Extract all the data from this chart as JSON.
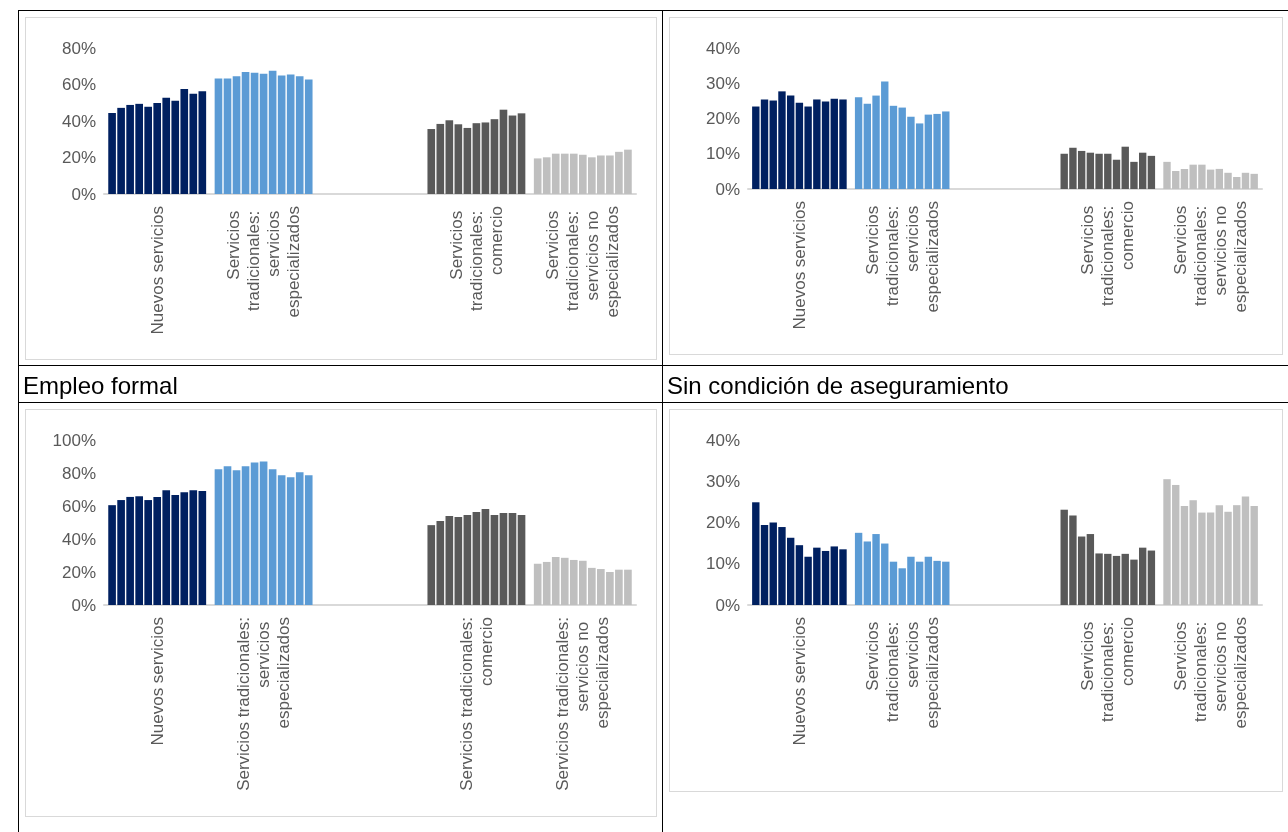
{
  "chart_data": [
    {
      "type": "bar",
      "categories": [
        "Nuevos servicios",
        "Servicios tradicionales: servicios especializados",
        null,
        "Servicios tradicionales: comercio",
        "Servicios tradicionales: servicios no especializados"
      ],
      "ylim": [
        0,
        80
      ],
      "yticks": [
        {
          "value": 0,
          "label": "0%"
        },
        {
          "value": 20,
          "label": "20%"
        },
        {
          "value": 40,
          "label": "40%"
        },
        {
          "value": 60,
          "label": "60%"
        },
        {
          "value": 80,
          "label": "80%"
        }
      ],
      "grid": false,
      "series": [
        {
          "values": [
            44.4,
            63.3,
            null,
            35.6,
            19.5
          ],
          "colors": [
            "#002060",
            "#5b9bd5",
            null,
            "#595959",
            "#bfbfbf"
          ]
        },
        {
          "values": [
            47.2,
            63.3,
            null,
            38.4,
            20.1
          ],
          "colors": [
            "#002060",
            "#5b9bd5",
            null,
            "#595959",
            "#bfbfbf"
          ]
        },
        {
          "values": [
            48.8,
            64.5,
            null,
            40.4,
            22.1
          ],
          "colors": [
            "#002060",
            "#5b9bd5",
            null,
            "#595959",
            "#bfbfbf"
          ]
        },
        {
          "values": [
            49.4,
            66.9,
            null,
            38.2,
            22.1
          ],
          "colors": [
            "#002060",
            "#5b9bd5",
            null,
            "#595959",
            "#bfbfbf"
          ]
        },
        {
          "values": [
            47.8,
            66.5,
            null,
            36.2,
            22.1
          ],
          "colors": [
            "#002060",
            "#5b9bd5",
            null,
            "#595959",
            "#bfbfbf"
          ]
        },
        {
          "values": [
            49.8,
            65.9,
            null,
            38.8,
            21.5
          ],
          "colors": [
            "#002060",
            "#5b9bd5",
            null,
            "#595959",
            "#bfbfbf"
          ]
        },
        {
          "values": [
            52.7,
            67.5,
            null,
            39.2,
            20.1
          ],
          "colors": [
            "#002060",
            "#5b9bd5",
            null,
            "#595959",
            "#bfbfbf"
          ]
        },
        {
          "values": [
            51.1,
            64.9,
            null,
            41.0,
            21.1
          ],
          "colors": [
            "#002060",
            "#5b9bd5",
            null,
            "#595959",
            "#bfbfbf"
          ]
        },
        {
          "values": [
            57.5,
            65.5,
            null,
            46.2,
            21.1
          ],
          "colors": [
            "#002060",
            "#5b9bd5",
            null,
            "#595959",
            "#bfbfbf"
          ]
        },
        {
          "values": [
            54.9,
            64.5,
            null,
            43.0,
            23.1
          ],
          "colors": [
            "#002060",
            "#5b9bd5",
            null,
            "#595959",
            "#bfbfbf"
          ]
        },
        {
          "values": [
            56.3,
            62.7,
            null,
            44.2,
            24.3
          ],
          "colors": [
            "#002060",
            "#5b9bd5",
            null,
            "#595959",
            "#bfbfbf"
          ]
        }
      ]
    },
    {
      "type": "bar",
      "categories": [
        "Nuevos servicios",
        "Servicios tradicionales: servicios especializados",
        null,
        "Servicios tradicionales: comercio",
        "Servicios tradicionales: servicios no especializados"
      ],
      "ylim": [
        0,
        40
      ],
      "yticks": [
        {
          "value": 0,
          "label": "0%"
        },
        {
          "value": 10,
          "label": "10%"
        },
        {
          "value": 20,
          "label": "20%"
        },
        {
          "value": 30,
          "label": "30%"
        },
        {
          "value": 40,
          "label": "40%"
        }
      ],
      "grid": false,
      "series": [
        {
          "values": [
            23.4,
            26.0,
            null,
            10.0,
            7.7
          ],
          "colors": [
            "#002060",
            "#5b9bd5",
            null,
            "#595959",
            "#bfbfbf"
          ]
        },
        {
          "values": [
            25.4,
            24.2,
            null,
            11.7,
            5.1
          ],
          "colors": [
            "#002060",
            "#5b9bd5",
            null,
            "#595959",
            "#bfbfbf"
          ]
        },
        {
          "values": [
            25.1,
            26.5,
            null,
            10.8,
            5.7
          ],
          "colors": [
            "#002060",
            "#5b9bd5",
            null,
            "#595959",
            "#bfbfbf"
          ]
        },
        {
          "values": [
            27.7,
            30.5,
            null,
            10.3,
            6.9
          ],
          "colors": [
            "#002060",
            "#5b9bd5",
            null,
            "#595959",
            "#bfbfbf"
          ]
        },
        {
          "values": [
            26.5,
            23.6,
            null,
            10.0,
            6.9
          ],
          "colors": [
            "#002060",
            "#5b9bd5",
            null,
            "#595959",
            "#bfbfbf"
          ]
        },
        {
          "values": [
            24.5,
            23.1,
            null,
            10.0,
            5.5
          ],
          "colors": [
            "#002060",
            "#5b9bd5",
            null,
            "#595959",
            "#bfbfbf"
          ]
        },
        {
          "values": [
            23.4,
            20.5,
            null,
            8.3,
            5.7
          ],
          "colors": [
            "#002060",
            "#5b9bd5",
            null,
            "#595959",
            "#bfbfbf"
          ]
        },
        {
          "values": [
            25.4,
            18.6,
            null,
            12.0,
            4.6
          ],
          "colors": [
            "#002060",
            "#5b9bd5",
            null,
            "#595959",
            "#bfbfbf"
          ]
        },
        {
          "values": [
            24.8,
            21.1,
            null,
            7.7,
            3.4
          ],
          "colors": [
            "#002060",
            "#5b9bd5",
            null,
            "#595959",
            "#bfbfbf"
          ]
        },
        {
          "values": [
            25.6,
            21.3,
            null,
            10.3,
            4.6
          ],
          "colors": [
            "#002060",
            "#5b9bd5",
            null,
            "#595959",
            "#bfbfbf"
          ]
        },
        {
          "values": [
            25.4,
            22.0,
            null,
            9.4,
            4.3
          ],
          "colors": [
            "#002060",
            "#5b9bd5",
            null,
            "#595959",
            "#bfbfbf"
          ]
        }
      ]
    },
    {
      "type": "bar",
      "title": "Empleo formal",
      "categories": [
        "Nuevos servicios",
        "Servicios tradicionales: servicios especializados",
        null,
        "Servicios tradicionales: comercio",
        "Servicios tradicionales: servicios no especializados"
      ],
      "ylim": [
        0,
        100
      ],
      "yticks": [
        {
          "value": 0,
          "label": "0%"
        },
        {
          "value": 20,
          "label": "20%"
        },
        {
          "value": 40,
          "label": "40%"
        },
        {
          "value": 60,
          "label": "60%"
        },
        {
          "value": 80,
          "label": "80%"
        },
        {
          "value": 100,
          "label": "100%"
        }
      ],
      "grid": false,
      "series": [
        {
          "values": [
            60.5,
            82.3,
            null,
            48.4,
            25.0
          ],
          "colors": [
            "#002060",
            "#5b9bd5",
            null,
            "#595959",
            "#bfbfbf"
          ]
        },
        {
          "values": [
            63.6,
            84.1,
            null,
            50.9,
            26.1
          ],
          "colors": [
            "#002060",
            "#5b9bd5",
            null,
            "#595959",
            "#bfbfbf"
          ]
        },
        {
          "values": [
            65.5,
            81.6,
            null,
            53.9,
            29.1
          ],
          "colors": [
            "#002060",
            "#5b9bd5",
            null,
            "#595959",
            "#bfbfbf"
          ]
        },
        {
          "values": [
            65.9,
            84.1,
            null,
            53.4,
            28.6
          ],
          "colors": [
            "#002060",
            "#5b9bd5",
            null,
            "#595959",
            "#bfbfbf"
          ]
        },
        {
          "values": [
            63.6,
            86.4,
            null,
            54.5,
            27.3
          ],
          "colors": [
            "#002060",
            "#5b9bd5",
            null,
            "#595959",
            "#bfbfbf"
          ]
        },
        {
          "values": [
            65.5,
            87.0,
            null,
            56.4,
            26.8
          ],
          "colors": [
            "#002060",
            "#5b9bd5",
            null,
            "#595959",
            "#bfbfbf"
          ]
        },
        {
          "values": [
            69.5,
            82.3,
            null,
            58.2,
            22.5
          ],
          "colors": [
            "#002060",
            "#5b9bd5",
            null,
            "#595959",
            "#bfbfbf"
          ]
        },
        {
          "values": [
            66.6,
            78.6,
            null,
            54.5,
            21.8
          ],
          "colors": [
            "#002060",
            "#5b9bd5",
            null,
            "#595959",
            "#bfbfbf"
          ]
        },
        {
          "values": [
            68.4,
            77.5,
            null,
            55.7,
            20.0
          ],
          "colors": [
            "#002060",
            "#5b9bd5",
            null,
            "#595959",
            "#bfbfbf"
          ]
        },
        {
          "values": [
            69.5,
            80.5,
            null,
            55.7,
            21.4
          ],
          "colors": [
            "#002060",
            "#5b9bd5",
            null,
            "#595959",
            "#bfbfbf"
          ]
        },
        {
          "values": [
            69.1,
            78.6,
            null,
            54.5,
            21.4
          ],
          "colors": [
            "#002060",
            "#5b9bd5",
            null,
            "#595959",
            "#bfbfbf"
          ]
        }
      ]
    },
    {
      "type": "bar",
      "title": "Sin condición de aseguramiento",
      "categories": [
        "Nuevos servicios",
        "Servicios tradicionales: servicios especializados",
        null,
        "Servicios tradicionales: comercio",
        "Servicios tradicionales: servicios no especializados"
      ],
      "ylim": [
        0,
        40
      ],
      "yticks": [
        {
          "value": 0,
          "label": "0%"
        },
        {
          "value": 10,
          "label": "10%"
        },
        {
          "value": 20,
          "label": "20%"
        },
        {
          "value": 30,
          "label": "30%"
        },
        {
          "value": 40,
          "label": "40%"
        }
      ],
      "grid": false,
      "series": [
        {
          "values": [
            24.9,
            17.5,
            null,
            23.1,
            30.5
          ],
          "colors": [
            "#002060",
            "#5b9bd5",
            null,
            "#595959",
            "#bfbfbf"
          ]
        },
        {
          "values": [
            19.4,
            15.4,
            null,
            21.7,
            29.1
          ],
          "colors": [
            "#002060",
            "#5b9bd5",
            null,
            "#595959",
            "#bfbfbf"
          ]
        },
        {
          "values": [
            20.0,
            17.2,
            null,
            16.6,
            24.0
          ],
          "colors": [
            "#002060",
            "#5b9bd5",
            null,
            "#595959",
            "#bfbfbf"
          ]
        },
        {
          "values": [
            18.9,
            14.9,
            null,
            17.2,
            25.4
          ],
          "colors": [
            "#002060",
            "#5b9bd5",
            null,
            "#595959",
            "#bfbfbf"
          ]
        },
        {
          "values": [
            16.3,
            10.5,
            null,
            12.5,
            22.4
          ],
          "colors": [
            "#002060",
            "#5b9bd5",
            null,
            "#595959",
            "#bfbfbf"
          ]
        },
        {
          "values": [
            14.5,
            8.9,
            null,
            12.4,
            22.4
          ],
          "colors": [
            "#002060",
            "#5b9bd5",
            null,
            "#595959",
            "#bfbfbf"
          ]
        },
        {
          "values": [
            11.7,
            11.7,
            null,
            11.9,
            24.2
          ],
          "colors": [
            "#002060",
            "#5b9bd5",
            null,
            "#595959",
            "#bfbfbf"
          ]
        },
        {
          "values": [
            13.9,
            10.5,
            null,
            12.4,
            22.6
          ],
          "colors": [
            "#002060",
            "#5b9bd5",
            null,
            "#595959",
            "#bfbfbf"
          ]
        },
        {
          "values": [
            13.1,
            11.7,
            null,
            11.0,
            24.2
          ],
          "colors": [
            "#002060",
            "#5b9bd5",
            null,
            "#595959",
            "#bfbfbf"
          ]
        },
        {
          "values": [
            14.2,
            10.7,
            null,
            13.9,
            26.3
          ],
          "colors": [
            "#002060",
            "#5b9bd5",
            null,
            "#595959",
            "#bfbfbf"
          ]
        },
        {
          "values": [
            13.5,
            10.5,
            null,
            13.2,
            24.0
          ],
          "colors": [
            "#002060",
            "#5b9bd5",
            null,
            "#595959",
            "#bfbfbf"
          ]
        }
      ]
    }
  ]
}
